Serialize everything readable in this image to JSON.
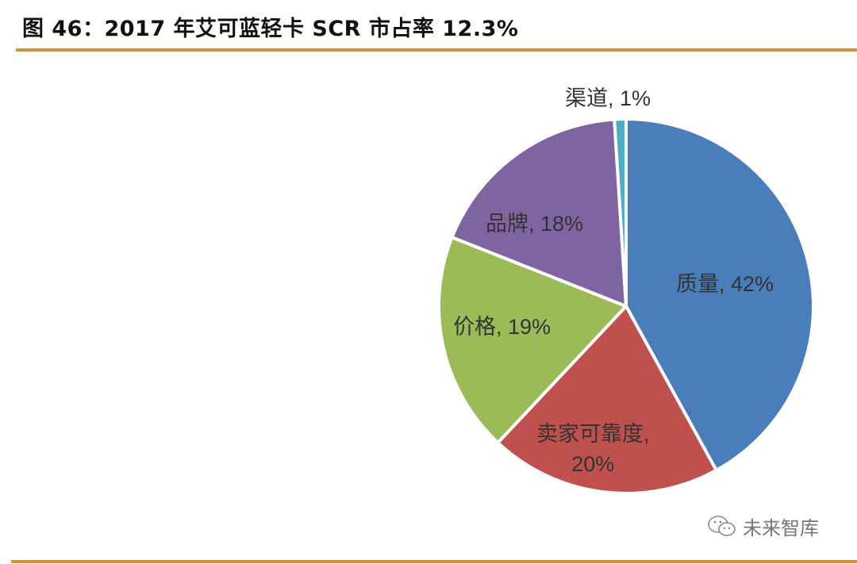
{
  "header": {
    "title": "图 46：2017 年艾可蓝轻卡 SCR 市占率 12.3%"
  },
  "watermark": {
    "text": "未来智库",
    "icon": "wechat-icon"
  },
  "colors": {
    "accent_rule": "#d0913a",
    "quality": "#4a7ebb",
    "seller": "#c0504d",
    "price": "#9bbb59",
    "brand": "#8064a2",
    "channel": "#4bacc6"
  },
  "chart_data": {
    "type": "pie",
    "title": "2017 年艾可蓝轻卡 SCR 市占率 12.3%",
    "categories": [
      "质量",
      "卖家可靠度",
      "价格",
      "品牌",
      "渠道"
    ],
    "values": [
      42,
      20,
      19,
      18,
      1
    ],
    "unit": "%",
    "labels": {
      "quality": "质量, 42%",
      "seller_line1": "卖家可靠度,",
      "seller_line2": "20%",
      "price": "价格, 19%",
      "brand": "品牌, 18%",
      "channel": "渠道, 1%"
    },
    "legend": "none",
    "start_angle": "12 o'clock, clockwise"
  }
}
